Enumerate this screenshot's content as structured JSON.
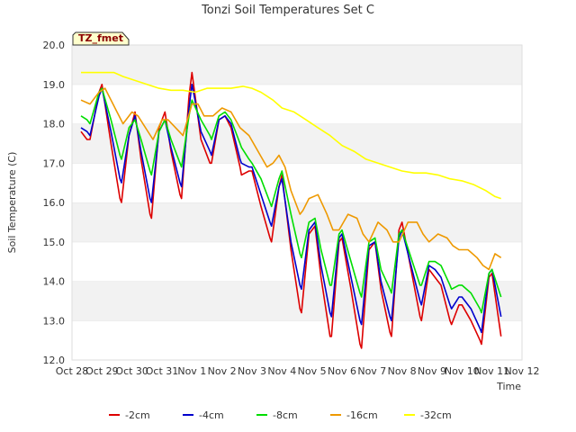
{
  "chart_data": {
    "type": "line",
    "title": "Tonzi Soil Temperatures Set C",
    "xlabel": "Time",
    "ylabel": "Soil Temperature (C)",
    "ylim": [
      12.0,
      20.0
    ],
    "xlim": [
      0,
      15
    ],
    "yticks": [
      12.0,
      13.0,
      14.0,
      15.0,
      16.0,
      17.0,
      18.0,
      19.0,
      20.0
    ],
    "ytick_labels": [
      "12.0",
      "13.0",
      "14.0",
      "15.0",
      "16.0",
      "17.0",
      "18.0",
      "19.0",
      "20.0"
    ],
    "xticks": [
      0,
      1,
      2,
      3,
      4,
      5,
      6,
      7,
      8,
      9,
      10,
      11,
      12,
      13,
      14,
      15
    ],
    "xtick_labels": [
      "Oct 28",
      "Oct 29",
      "Oct 30",
      "Oct 31",
      "Nov 1",
      "Nov 2",
      "Nov 3",
      "Nov 4",
      "Nov 5",
      "Nov 6",
      "Nov 7",
      "Nov 8",
      "Nov 9",
      "Nov 10",
      "Nov 11",
      "Nov 12"
    ],
    "grid": "horizontal bands",
    "legend_position": "bottom",
    "annotation": "TZ_fmet",
    "series": [
      {
        "name": "-2cm",
        "color": "#dd0000",
        "x": [
          0.3,
          0.5,
          0.6,
          0.9,
          1.0,
          1.3,
          1.6,
          1.65,
          1.9,
          2.1,
          2.3,
          2.6,
          2.65,
          2.9,
          3.1,
          3.3,
          3.6,
          3.65,
          3.9,
          4.0,
          4.3,
          4.6,
          4.65,
          4.9,
          5.1,
          5.3,
          5.6,
          5.65,
          5.9,
          6.0,
          6.3,
          6.6,
          6.65,
          6.9,
          7.0,
          7.3,
          7.6,
          7.65,
          7.9,
          8.1,
          8.3,
          8.6,
          8.65,
          8.9,
          9.0,
          9.3,
          9.6,
          9.65,
          9.9,
          10.1,
          10.3,
          10.6,
          10.65,
          10.9,
          11.0,
          11.3,
          11.6,
          11.65,
          11.9,
          12.1,
          12.3,
          12.6,
          12.65,
          12.9,
          13.0,
          13.3,
          13.6,
          13.65,
          13.9,
          14.0,
          14.3
        ],
        "y": [
          17.8,
          17.6,
          17.6,
          18.8,
          19.0,
          17.5,
          16.1,
          16.0,
          17.7,
          18.3,
          17.1,
          15.7,
          15.6,
          17.9,
          18.3,
          17.3,
          16.2,
          16.1,
          18.7,
          19.3,
          17.6,
          17.0,
          17.0,
          18.1,
          18.2,
          17.9,
          16.9,
          16.7,
          16.8,
          16.8,
          15.9,
          15.1,
          15.0,
          16.4,
          16.7,
          14.8,
          13.3,
          13.2,
          15.2,
          15.4,
          14.1,
          12.6,
          12.6,
          15.0,
          15.1,
          13.8,
          12.4,
          12.3,
          14.8,
          15.0,
          13.8,
          12.7,
          12.6,
          15.3,
          15.5,
          14.3,
          13.1,
          13.0,
          14.3,
          14.1,
          13.9,
          13.0,
          12.9,
          13.4,
          13.4,
          13.0,
          12.5,
          12.4,
          14.1,
          14.2,
          12.6
        ]
      },
      {
        "name": "-4cm",
        "color": "#0000cc",
        "x": [
          0.3,
          0.5,
          0.6,
          0.9,
          1.0,
          1.3,
          1.6,
          1.65,
          1.9,
          2.1,
          2.3,
          2.6,
          2.65,
          2.9,
          3.1,
          3.3,
          3.6,
          3.65,
          3.9,
          4.0,
          4.3,
          4.6,
          4.65,
          4.9,
          5.1,
          5.3,
          5.6,
          5.65,
          5.9,
          6.0,
          6.3,
          6.6,
          6.65,
          6.9,
          7.0,
          7.3,
          7.6,
          7.65,
          7.9,
          8.1,
          8.3,
          8.6,
          8.65,
          8.9,
          9.0,
          9.3,
          9.6,
          9.65,
          9.9,
          10.1,
          10.3,
          10.6,
          10.65,
          10.9,
          11.0,
          11.3,
          11.6,
          11.65,
          11.9,
          12.1,
          12.3,
          12.6,
          12.65,
          12.9,
          13.0,
          13.3,
          13.6,
          13.65,
          13.9,
          14.0,
          14.3
        ],
        "y": [
          17.9,
          17.8,
          17.7,
          18.7,
          18.9,
          17.8,
          16.6,
          16.5,
          17.7,
          18.2,
          17.3,
          16.1,
          16.0,
          17.8,
          18.1,
          17.4,
          16.5,
          16.4,
          18.4,
          19.0,
          17.8,
          17.3,
          17.2,
          18.1,
          18.2,
          18.0,
          17.1,
          17.0,
          16.9,
          16.9,
          16.2,
          15.5,
          15.4,
          16.4,
          16.6,
          15.0,
          13.9,
          13.8,
          15.3,
          15.5,
          14.4,
          13.2,
          13.1,
          15.1,
          15.2,
          14.1,
          13.0,
          12.9,
          14.9,
          15.0,
          14.0,
          13.1,
          13.0,
          15.1,
          15.3,
          14.4,
          13.5,
          13.4,
          14.4,
          14.3,
          14.1,
          13.4,
          13.3,
          13.6,
          13.6,
          13.3,
          12.8,
          12.7,
          14.2,
          14.3,
          13.1
        ]
      },
      {
        "name": "-8cm",
        "color": "#00dd00",
        "x": [
          0.3,
          0.5,
          0.6,
          0.9,
          1.0,
          1.3,
          1.6,
          1.65,
          1.9,
          2.1,
          2.3,
          2.6,
          2.65,
          2.9,
          3.1,
          3.3,
          3.6,
          3.65,
          3.9,
          4.0,
          4.3,
          4.6,
          4.65,
          4.9,
          5.1,
          5.3,
          5.6,
          5.65,
          5.9,
          6.0,
          6.3,
          6.6,
          6.65,
          6.9,
          7.0,
          7.3,
          7.6,
          7.65,
          7.9,
          8.1,
          8.3,
          8.6,
          8.65,
          8.9,
          9.0,
          9.3,
          9.6,
          9.65,
          9.9,
          10.1,
          10.3,
          10.6,
          10.65,
          10.9,
          11.0,
          11.3,
          11.6,
          11.65,
          11.9,
          12.1,
          12.3,
          12.6,
          12.65,
          12.9,
          13.0,
          13.3,
          13.6,
          13.65,
          13.9,
          14.0,
          14.3
        ],
        "y": [
          18.2,
          18.1,
          18.0,
          18.8,
          18.9,
          18.1,
          17.2,
          17.1,
          17.9,
          18.1,
          17.6,
          16.8,
          16.7,
          17.8,
          18.1,
          17.6,
          17.0,
          16.9,
          18.2,
          18.6,
          18.1,
          17.7,
          17.6,
          18.2,
          18.3,
          18.1,
          17.5,
          17.4,
          17.1,
          17.0,
          16.6,
          16.0,
          15.9,
          16.6,
          16.8,
          15.7,
          14.7,
          14.6,
          15.5,
          15.6,
          14.8,
          13.9,
          13.9,
          15.2,
          15.3,
          14.5,
          13.7,
          13.6,
          15.0,
          15.1,
          14.3,
          13.8,
          13.7,
          15.2,
          15.3,
          14.6,
          13.9,
          13.9,
          14.5,
          14.5,
          14.4,
          13.9,
          13.8,
          13.9,
          13.9,
          13.7,
          13.3,
          13.2,
          14.2,
          14.3,
          13.6
        ]
      },
      {
        "name": "-16cm",
        "color": "#ee9900",
        "x": [
          0.3,
          0.6,
          0.9,
          1.1,
          1.3,
          1.7,
          2.0,
          2.2,
          2.7,
          3.0,
          3.2,
          3.7,
          4.0,
          4.2,
          4.4,
          4.7,
          5.0,
          5.3,
          5.6,
          5.9,
          6.2,
          6.5,
          6.7,
          6.9,
          7.1,
          7.3,
          7.6,
          7.7,
          7.9,
          8.2,
          8.5,
          8.7,
          8.9,
          9.2,
          9.5,
          9.7,
          9.9,
          10.2,
          10.5,
          10.7,
          10.9,
          11.2,
          11.5,
          11.7,
          11.9,
          12.2,
          12.5,
          12.7,
          12.9,
          13.2,
          13.5,
          13.7,
          13.9,
          14.1,
          14.3
        ],
        "y": [
          18.6,
          18.5,
          18.8,
          18.9,
          18.6,
          18.0,
          18.3,
          18.2,
          17.6,
          18.1,
          18.1,
          17.7,
          18.5,
          18.5,
          18.2,
          18.2,
          18.4,
          18.3,
          17.9,
          17.7,
          17.3,
          16.9,
          17.0,
          17.2,
          16.9,
          16.3,
          15.7,
          15.8,
          16.1,
          16.2,
          15.7,
          15.3,
          15.3,
          15.7,
          15.6,
          15.2,
          15.0,
          15.5,
          15.3,
          15.0,
          15.0,
          15.5,
          15.5,
          15.2,
          15.0,
          15.2,
          15.1,
          14.9,
          14.8,
          14.8,
          14.6,
          14.4,
          14.3,
          14.7,
          14.6
        ]
      },
      {
        "name": "-32cm",
        "color": "#ffff00",
        "x": [
          0.3,
          0.7,
          1.0,
          1.4,
          1.7,
          2.1,
          2.5,
          2.9,
          3.3,
          3.7,
          4.1,
          4.5,
          4.9,
          5.3,
          5.7,
          6.0,
          6.3,
          6.7,
          7.0,
          7.4,
          7.8,
          8.2,
          8.6,
          9.0,
          9.4,
          9.8,
          10.2,
          10.6,
          11.0,
          11.4,
          11.8,
          12.2,
          12.6,
          13.0,
          13.4,
          13.8,
          14.1,
          14.3
        ],
        "y": [
          19.3,
          19.3,
          19.3,
          19.3,
          19.2,
          19.1,
          19.0,
          18.9,
          18.85,
          18.85,
          18.8,
          18.9,
          18.9,
          18.9,
          18.95,
          18.9,
          18.8,
          18.6,
          18.4,
          18.3,
          18.1,
          17.9,
          17.7,
          17.45,
          17.3,
          17.1,
          17.0,
          16.9,
          16.8,
          16.75,
          16.75,
          16.7,
          16.6,
          16.55,
          16.45,
          16.3,
          16.15,
          16.1
        ]
      }
    ]
  }
}
